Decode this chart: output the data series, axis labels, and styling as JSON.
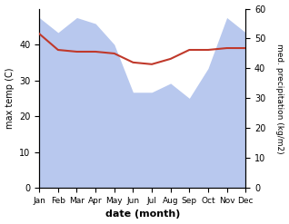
{
  "months": [
    "Jan",
    "Feb",
    "Mar",
    "Apr",
    "May",
    "Jun",
    "Jul",
    "Aug",
    "Sep",
    "Oct",
    "Nov",
    "Dec"
  ],
  "max_temp": [
    43,
    38.5,
    38,
    38,
    37.5,
    35,
    34.5,
    36,
    38.5,
    38.5,
    39,
    39
  ],
  "precipitation": [
    57,
    52,
    57,
    55,
    48,
    32,
    32,
    35,
    30,
    40,
    57,
    52
  ],
  "temp_color": "#c0392b",
  "precip_fill_color": "#b8c8ee",
  "temp_ylim": [
    0,
    50
  ],
  "precip_ylim": [
    0,
    60
  ],
  "temp_yticks": [
    0,
    10,
    20,
    30,
    40
  ],
  "precip_yticks": [
    0,
    10,
    20,
    30,
    40,
    50,
    60
  ],
  "xlabel": "date (month)",
  "ylabel_left": "max temp (C)",
  "ylabel_right": "med. precipitation (kg/m2)",
  "background_color": "#ffffff"
}
